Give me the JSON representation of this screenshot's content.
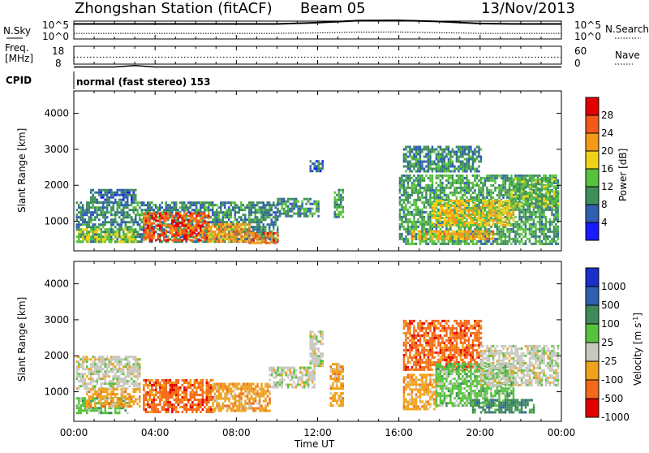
{
  "header": {
    "station": "Zhongshan Station (fitACF)",
    "beam": "Beam 05",
    "date": "13/Nov/2013"
  },
  "top_panel": {
    "left_label": "N.Sky",
    "left_ticks": [
      "10^5",
      "10^0"
    ],
    "right_ticks": [
      "10^5",
      "10^0"
    ],
    "right_label": "N.Search",
    "right_legend_style": "dotted"
  },
  "freq_panel": {
    "left_label_line1": "Freq.",
    "left_label_line2": "[MHz]",
    "left_ticks": [
      "18",
      "8"
    ],
    "right_ticks": [
      "60",
      "0"
    ],
    "right_label": "Nave",
    "right_legend_style": "dotted"
  },
  "cpid": {
    "label": "CPID",
    "mode": "normal (fast stereo) 153"
  },
  "x_axis": {
    "label": "Time UT",
    "ticks": [
      "00:00",
      "04:00",
      "08:00",
      "12:00",
      "16:00",
      "20:00",
      "00:00"
    ]
  },
  "power_colorbar": {
    "label": "Power [dB]",
    "ticks": [
      "4",
      "8",
      "12",
      "16",
      "20",
      "24",
      "28"
    ],
    "colors": [
      "#1a1aff",
      "#2f5fb0",
      "#3f8f5a",
      "#58c23e",
      "#f0d21a",
      "#f39a1a",
      "#f4581b",
      "#e10000"
    ]
  },
  "velocity_colorbar": {
    "label": "Velocity [m s^-1]",
    "ticks": [
      "1000",
      "500",
      "100",
      "25",
      "-25",
      "-100",
      "-500",
      "-1000"
    ],
    "colors": [
      "#1a30c8",
      "#2e5fb0",
      "#3f8a5a",
      "#58c23e",
      "#c8c8c0",
      "#f0a21a",
      "#f36a1a",
      "#e10000"
    ]
  },
  "chart_data": [
    {
      "type": "line",
      "title": "",
      "xlabel": "Time UT",
      "ylabel": "N.Sky / N.Search",
      "x": [
        0,
        2,
        4,
        6,
        8,
        10,
        12,
        14,
        16,
        18,
        20,
        22,
        24
      ],
      "series": [
        {
          "name": "N.Sky",
          "values": [
            3000,
            3000,
            3000,
            3000,
            3000,
            3000,
            8000,
            40000,
            50000,
            20000,
            4000,
            3000,
            3000
          ]
        },
        {
          "name": "N.Search",
          "values": [
            300,
            300,
            300,
            300,
            300,
            300,
            400,
            800,
            900,
            500,
            300,
            300,
            300
          ]
        }
      ],
      "log_scale": true
    },
    {
      "type": "line",
      "xlabel": "Time UT",
      "ylabel": "Freq. [MHz]",
      "x": [
        0,
        2,
        3,
        4,
        8,
        12,
        16,
        20,
        24
      ],
      "series": [
        {
          "name": "Freq.",
          "values": [
            10.5,
            10.5,
            11.5,
            10.5,
            10.5,
            10.5,
            10.5,
            10.5,
            10.5
          ]
        },
        {
          "name": "Nave",
          "values": [
            22,
            22,
            22,
            22,
            22,
            22,
            22,
            22,
            22
          ]
        }
      ],
      "ylim": [
        8,
        18
      ]
    },
    {
      "type": "heatmap",
      "title": "Power",
      "xlabel": "Time UT",
      "ylabel": "Slant Range [km]",
      "xlim_hours": [
        0,
        24
      ],
      "ylim": [
        200,
        4600
      ],
      "yticks": [
        1000,
        2000,
        3000,
        4000
      ],
      "colorbar": "Power [dB]",
      "clim": [
        0,
        30
      ],
      "regions": [
        {
          "t0": 0.1,
          "t1": 10.0,
          "r0": 400,
          "r1": 1550,
          "v": 8
        },
        {
          "t0": 0.8,
          "t1": 3.0,
          "r0": 1500,
          "r1": 1900,
          "v": 6
        },
        {
          "t0": 0.2,
          "t1": 3.0,
          "r0": 450,
          "r1": 800,
          "v": 14
        },
        {
          "t0": 3.4,
          "t1": 6.6,
          "r0": 450,
          "r1": 1250,
          "v": 26
        },
        {
          "t0": 6.6,
          "t1": 8.6,
          "r0": 450,
          "r1": 950,
          "v": 22
        },
        {
          "t0": 8.6,
          "t1": 10.0,
          "r0": 420,
          "r1": 700,
          "v": 24
        },
        {
          "t0": 10.0,
          "t1": 12.0,
          "r0": 1150,
          "r1": 1650,
          "v": 8
        },
        {
          "t0": 11.6,
          "t1": 12.2,
          "r0": 2400,
          "r1": 2700,
          "v": 6
        },
        {
          "t0": 12.8,
          "t1": 13.2,
          "r0": 1100,
          "r1": 1900,
          "v": 10
        },
        {
          "t0": 16.0,
          "t1": 23.8,
          "r0": 400,
          "r1": 2300,
          "v": 10
        },
        {
          "t0": 17.6,
          "t1": 21.6,
          "r0": 900,
          "r1": 1600,
          "v": 18
        },
        {
          "t0": 16.6,
          "t1": 20.6,
          "r0": 500,
          "r1": 750,
          "v": 20
        },
        {
          "t0": 16.2,
          "t1": 20.0,
          "r0": 2400,
          "r1": 3100,
          "v": 8
        },
        {
          "t0": 21.4,
          "t1": 23.8,
          "r0": 1400,
          "r1": 2200,
          "v": 12
        }
      ]
    },
    {
      "type": "heatmap",
      "title": "Velocity",
      "xlabel": "Time UT",
      "ylabel": "Slant Range [km]",
      "xlim_hours": [
        0,
        24
      ],
      "ylim": [
        200,
        4600
      ],
      "yticks": [
        1000,
        2000,
        3000,
        4000
      ],
      "colorbar": "Velocity [m s^-1]",
      "categories_v": [
        1000,
        500,
        100,
        25,
        -25,
        -100,
        -500,
        -1000
      ],
      "regions": [
        {
          "t0": 0.1,
          "t1": 3.2,
          "r0": 1100,
          "r1": 2000,
          "cat": 4
        },
        {
          "t0": 0.1,
          "t1": 2.6,
          "r0": 400,
          "r1": 850,
          "cat": 3
        },
        {
          "t0": 0.6,
          "t1": 3.2,
          "r0": 600,
          "r1": 1100,
          "cat": 5
        },
        {
          "t0": 3.4,
          "t1": 6.8,
          "r0": 450,
          "r1": 1350,
          "cat": 6
        },
        {
          "t0": 6.8,
          "t1": 9.6,
          "r0": 450,
          "r1": 1250,
          "cat": 5
        },
        {
          "t0": 9.6,
          "t1": 11.8,
          "r0": 1150,
          "r1": 1700,
          "cat": 4
        },
        {
          "t0": 11.6,
          "t1": 12.2,
          "r0": 1700,
          "r1": 2700,
          "cat": 4
        },
        {
          "t0": 12.6,
          "t1": 13.2,
          "r0": 600,
          "r1": 1800,
          "cat": 5
        },
        {
          "t0": 16.2,
          "t1": 20.0,
          "r0": 1600,
          "r1": 3000,
          "cat": 6
        },
        {
          "t0": 16.2,
          "t1": 17.8,
          "r0": 500,
          "r1": 1500,
          "cat": 5
        },
        {
          "t0": 17.8,
          "t1": 21.6,
          "r0": 600,
          "r1": 1800,
          "cat": 3
        },
        {
          "t0": 20.0,
          "t1": 23.8,
          "r0": 1200,
          "r1": 2300,
          "cat": 4
        },
        {
          "t0": 19.6,
          "t1": 22.6,
          "r0": 450,
          "r1": 800,
          "cat": 2
        }
      ]
    }
  ]
}
